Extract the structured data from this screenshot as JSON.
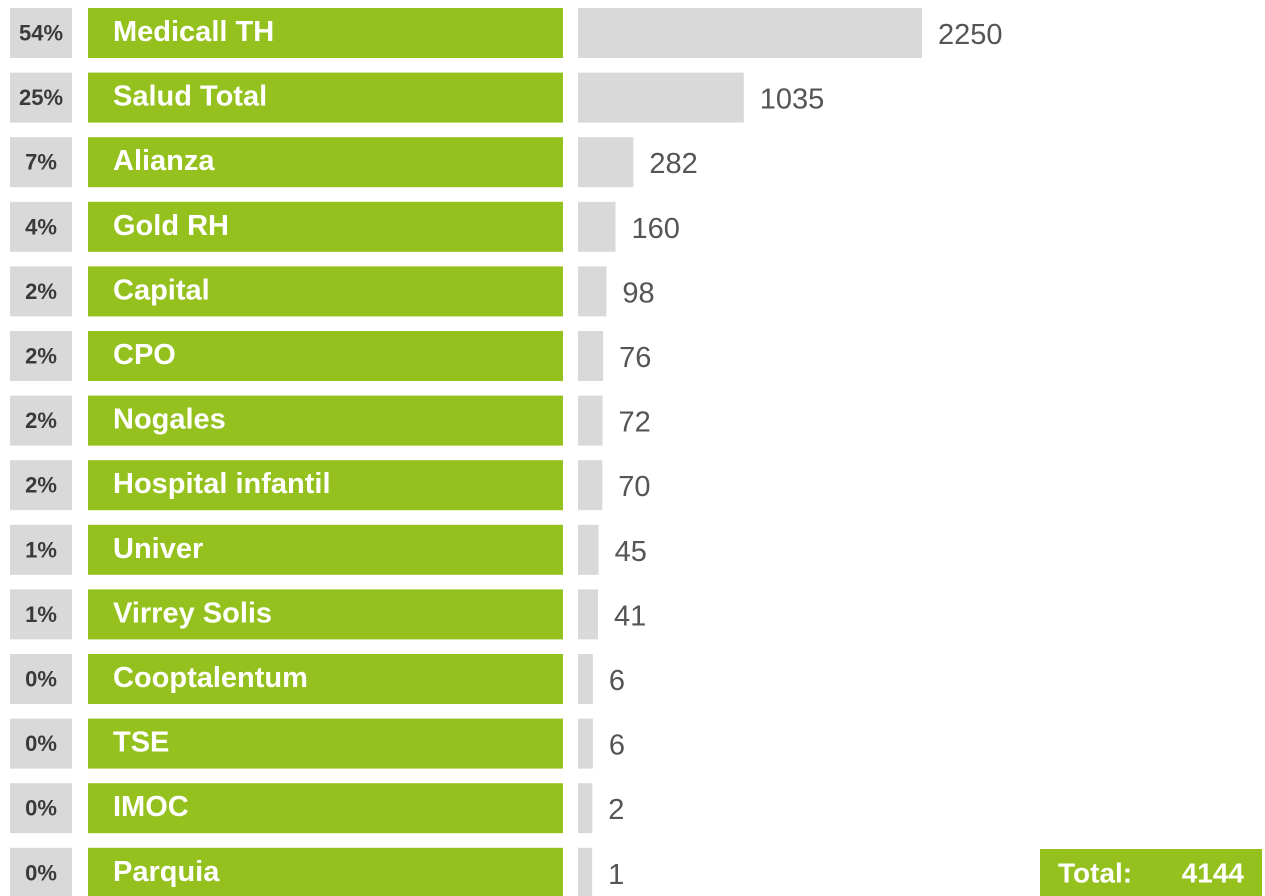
{
  "chart_data": {
    "type": "bar",
    "orientation": "horizontal",
    "categories": [
      "Medicall TH",
      "Salud Total",
      "Alianza",
      "Gold RH",
      "Capital",
      "CPO",
      "Nogales",
      "Hospital infantil",
      "Univer",
      "Virrey Solis",
      "Cooptalentum",
      "TSE",
      "IMOC",
      "Parquia"
    ],
    "values": [
      2250,
      1035,
      282,
      160,
      98,
      76,
      72,
      70,
      45,
      41,
      6,
      6,
      2,
      1
    ],
    "percent_values": [
      54,
      25,
      7,
      4,
      2,
      2,
      2,
      2,
      1,
      1,
      0,
      0,
      0,
      0
    ],
    "percent_labels": [
      "54%",
      "25%",
      "7%",
      "4%",
      "2%",
      "2%",
      "2%",
      "2%",
      "1%",
      "1%",
      "0%",
      "0%",
      "0%",
      "0%"
    ],
    "color": "#d9d9d9",
    "label_color": "#95c11f",
    "total_label": "Total:",
    "total": 4144
  }
}
